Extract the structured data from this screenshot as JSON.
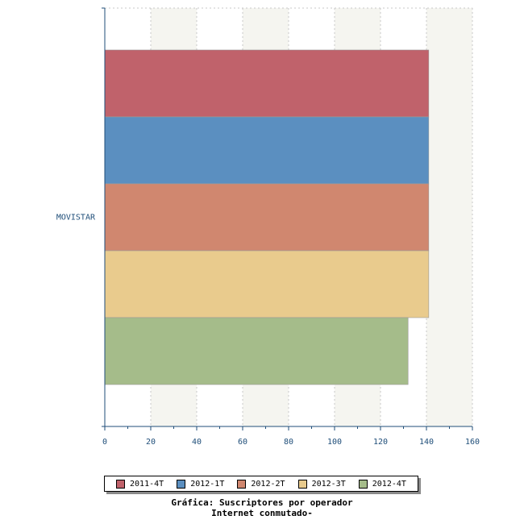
{
  "chart_data": {
    "type": "bar",
    "orientation": "horizontal",
    "categories": [
      "MOVISTAR"
    ],
    "series": [
      {
        "name": "2011-4T",
        "color": "#c0626b",
        "values": [
          141
        ]
      },
      {
        "name": "2012-1T",
        "color": "#5b8fc0",
        "values": [
          141
        ]
      },
      {
        "name": "2012-2T",
        "color": "#d0876f",
        "values": [
          141
        ]
      },
      {
        "name": "2012-3T",
        "color": "#e9cb8d",
        "values": [
          141
        ]
      },
      {
        "name": "2012-4T",
        "color": "#a5bc8a",
        "values": [
          132
        ]
      }
    ],
    "xlim": [
      0,
      160
    ],
    "xticks": [
      0,
      20,
      40,
      60,
      80,
      100,
      120,
      140,
      160
    ],
    "grid": "vertical dashed, alternating bands",
    "legend_position": "bottom",
    "title_lines": [
      "Gráfica: Suscriptores por operador",
      "Internet conmutado-"
    ]
  },
  "colors": {
    "axis": "#1f4e79",
    "band": "#f5f5f0",
    "grid": "#c8c8c8"
  }
}
